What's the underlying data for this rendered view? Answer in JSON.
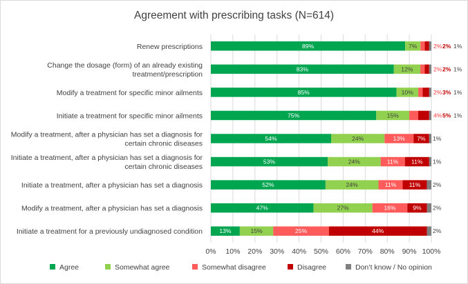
{
  "chart_data": {
    "type": "bar",
    "orientation": "horizontal",
    "stacked": true,
    "normalized": true,
    "title": "Agreement with prescribing tasks (N=614)",
    "xlim": [
      0,
      100
    ],
    "ticks": [
      "0%",
      "10%",
      "20%",
      "30%",
      "40%",
      "50%",
      "60%",
      "70%",
      "80%",
      "90%",
      "100%"
    ],
    "colors": [
      "#00a550",
      "#92d050",
      "#ff5b5b",
      "#c00000",
      "#7f7f7f"
    ],
    "categories": [
      [
        "Renew prescriptions"
      ],
      [
        "Change the dosage (form) of an already existing",
        "treatment/prescription"
      ],
      [
        "Modify a treatment for specific minor ailments"
      ],
      [
        "Initiate a treatment for specific minor ailments"
      ],
      [
        "Modify a treatment, after a physician has set a diagnosis for",
        "certain chronic diseases"
      ],
      [
        "Initiate a treatment, after a physician has set a diagnosis for",
        "certain chronic diseases"
      ],
      [
        "Initiate a treatment, after a physician has set a diagnosis"
      ],
      [
        "Modify a treatment, after a physician has set a diagnosis"
      ],
      [
        "Initiate a treatment for a previously undiagnosed condition"
      ]
    ],
    "series": [
      {
        "name": "Agree",
        "values": [
          89,
          83,
          85,
          75,
          54,
          53,
          52,
          47,
          13
        ]
      },
      {
        "name": "Somewhat agree",
        "values": [
          7,
          12,
          10,
          15,
          24,
          24,
          24,
          27,
          15
        ]
      },
      {
        "name": "Somewhat disagree",
        "values": [
          2,
          2,
          2,
          4,
          13,
          11,
          11,
          16,
          25
        ]
      },
      {
        "name": "Disagree",
        "values": [
          2,
          2,
          3,
          5,
          7,
          11,
          11,
          9,
          44
        ]
      },
      {
        "name": "Don’t know / No opinion",
        "values": [
          1,
          1,
          1,
          1,
          1,
          1,
          2,
          2,
          2
        ]
      }
    ],
    "labels": [
      [
        "89%",
        "7%",
        "2%",
        "2%",
        "1%"
      ],
      [
        "83%",
        "12%",
        "2%",
        "2%",
        "1%"
      ],
      [
        "85%",
        "10%",
        "2%",
        "3%",
        "1%"
      ],
      [
        "75%",
        "15%",
        "4%",
        "5%",
        "1%"
      ],
      [
        "54%",
        "24%",
        "13%",
        "7%",
        "1%"
      ],
      [
        "53%",
        "24%",
        "11%",
        "11%",
        "1%"
      ],
      [
        "52%",
        "24%",
        "11%",
        "11%",
        "2%"
      ],
      [
        "47%",
        "27%",
        "16%",
        "9%",
        "2%"
      ],
      [
        "13%",
        "15%",
        "25%",
        "44%",
        "2%"
      ]
    ],
    "legend": [
      "Agree",
      "Somewhat agree",
      "Somewhat disagree",
      "Disagree",
      "Don’t know / No opinion"
    ]
  }
}
